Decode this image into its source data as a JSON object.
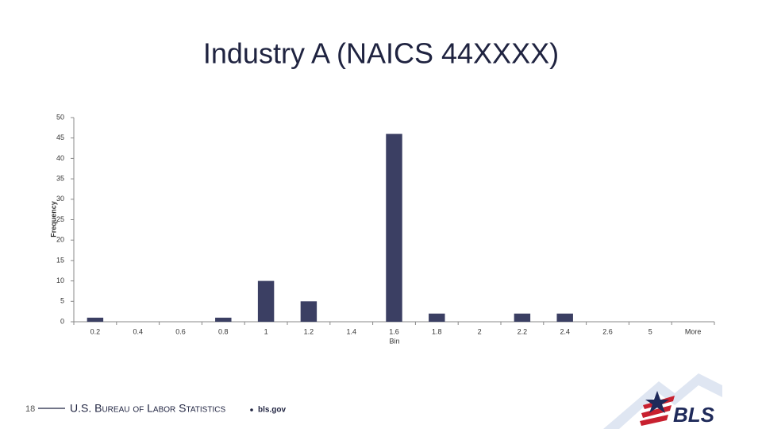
{
  "chart_data": {
    "type": "bar",
    "title": "Industry A (NAICS 44XXXX)",
    "x_label": "Bin",
    "y_label": "Frequency",
    "categories": [
      "0.2",
      "0.4",
      "0.6",
      "0.8",
      "1",
      "1.2",
      "1.4",
      "1.6",
      "1.8",
      "2",
      "2.2",
      "2.4",
      "2.6",
      "5",
      "More"
    ],
    "values": [
      1,
      0,
      0,
      1,
      10,
      5,
      0,
      46,
      2,
      0,
      2,
      2,
      0,
      0,
      0
    ],
    "color": "#3b3f63",
    "ylim": [
      0,
      50
    ],
    "yticks": [
      0,
      5,
      10,
      15,
      20,
      25,
      30,
      35,
      40,
      45,
      50
    ],
    "grid": false
  },
  "footer": {
    "page_number": "18",
    "organization": "U.S. Bureau of Labor Statistics",
    "site": "bls.gov",
    "logo": "BLS"
  }
}
